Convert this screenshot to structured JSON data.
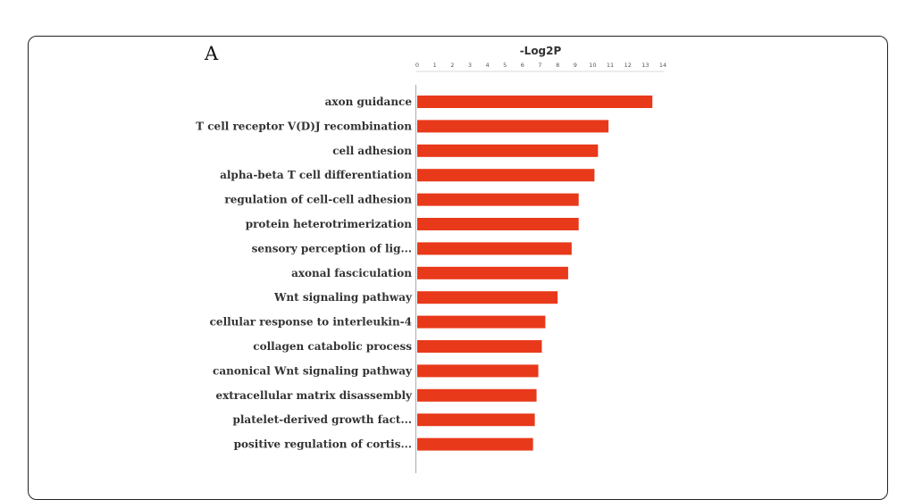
{
  "panel_label": "A",
  "chart_data": {
    "type": "bar",
    "orientation": "horizontal",
    "title": "-Log2P",
    "xlabel": "",
    "ylabel": "",
    "xlim": [
      0,
      14
    ],
    "x_ticks": [
      0,
      1,
      2,
      3,
      4,
      5,
      6,
      7,
      8,
      9,
      10,
      11,
      12,
      13,
      14
    ],
    "grid": false,
    "bar_color": "#e8391a",
    "categories": [
      "axon guidance",
      "T cell receptor V(D)J recombination",
      "cell adhesion",
      "alpha-beta T cell differentiation",
      "regulation of cell-cell adhesion",
      "protein heterotrimerization",
      "sensory perception of lig...",
      "axonal fasciculation",
      "Wnt signaling pathway",
      "cellular response to interleukin-4",
      "collagen catabolic process",
      "canonical Wnt signaling pathway",
      "extracellular matrix disassembly",
      "platelet-derived growth fact...",
      "positive regulation of cortis..."
    ],
    "values": [
      13.4,
      10.9,
      10.3,
      10.1,
      9.2,
      9.2,
      8.8,
      8.6,
      8.0,
      7.3,
      7.1,
      6.9,
      6.8,
      6.7,
      6.6
    ]
  }
}
